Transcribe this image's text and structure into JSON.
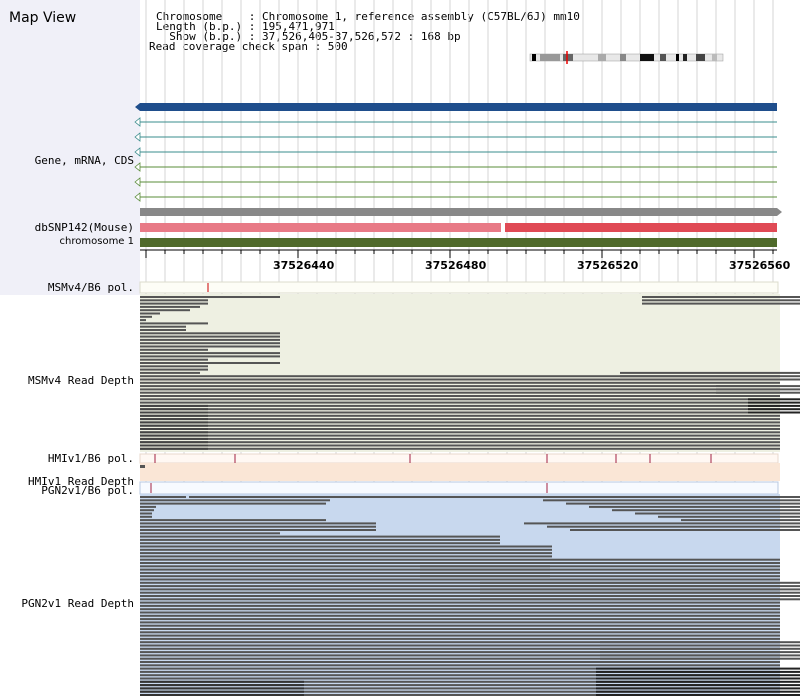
{
  "header": {
    "title": "Map View",
    "chromosome_line": "Chromosome    : Chromosome 1, reference assembly (C57BL/6J) mm10",
    "length_line": "Length (b.p.) : 195,471,971",
    "show_line": "  Show (b.p.) : 37,526,405-37,526,572 : 168 bp",
    "coverage_line": "Read coverage check span : 500"
  },
  "tracks": {
    "gene_label": "Gene, mRNA, CDS",
    "snp_label": "dbSNP142(Mouse)",
    "chrom_label": "chromosome 1",
    "msm_pol_label": "MSMv4/B6 pol.",
    "msm_depth_label": "MSMv4 Read Depth",
    "hmi_pol_label": "HMIv1/B6 pol.",
    "hmi_depth_label": "HMIv1 Read Depth",
    "pgn_pol_label": "PGN2v1/B6 pol.",
    "pgn_depth_label": "PGN2v1 Read Depth"
  },
  "ruler": {
    "ticks": [
      "37526440",
      "37526480",
      "37526520",
      "37526560"
    ]
  },
  "colors": {
    "gene_bar": "#1f4e8c",
    "transcript_line": "#3a8c8c",
    "transcript_line_green": "#5a8c3a",
    "snp_bar_light": "#e87a86",
    "snp_bar": "#e04a55",
    "chrom_bar": "#4f6a2a",
    "msm_bg": "#eef0e2",
    "hmi_bg": "#fae6d6",
    "pgn_bg": "#c8d8ee",
    "read": "#555555"
  }
}
